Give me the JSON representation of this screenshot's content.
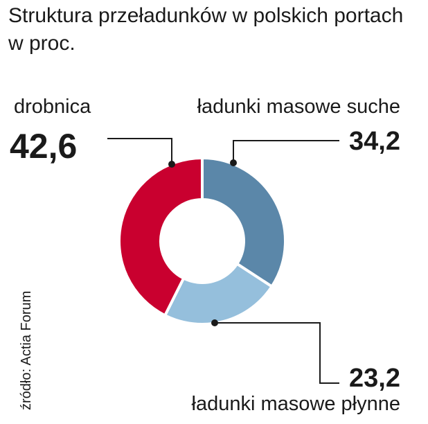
{
  "chart_data": {
    "type": "donut",
    "title": "Struktura przeładunków w polskich portach",
    "subtitle": "w proc.",
    "source": "źródło: Actia Forum",
    "categories": [
      "ładunki masowe suche",
      "ładunki masowe płynne",
      "drobnica"
    ],
    "values": [
      34.2,
      23.2,
      42.6
    ],
    "value_labels": [
      "34,2",
      "23,2",
      "42,6"
    ],
    "colors": [
      "#5b87a9",
      "#95bfdc",
      "#c9002f"
    ]
  }
}
